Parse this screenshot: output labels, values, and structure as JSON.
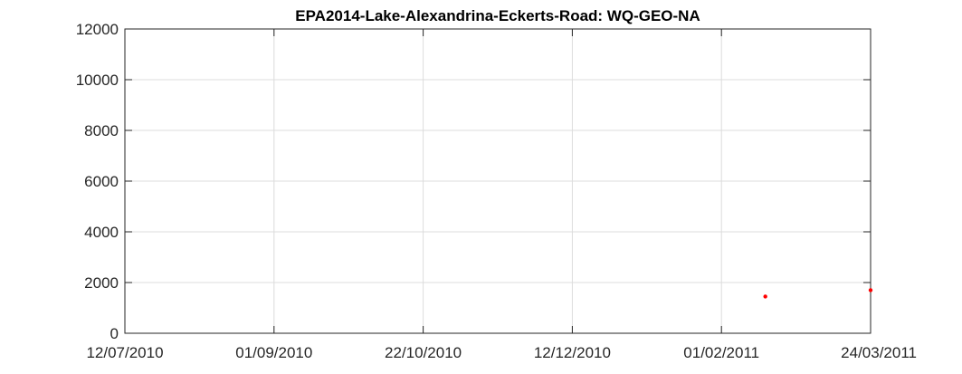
{
  "chart_data": {
    "type": "scatter",
    "title": "EPA2014-Lake-Alexandrina-Eckerts-Road: WQ-GEO-NA",
    "xlabel": "",
    "ylabel": "",
    "x_axis": {
      "type": "date",
      "range": [
        "2010-07-12",
        "2011-03-24"
      ],
      "ticks": [
        "2010-07-12",
        "2010-09-01",
        "2010-10-22",
        "2010-12-12",
        "2011-02-01",
        "2011-03-24"
      ],
      "tick_labels": [
        "12/07/2010",
        "01/09/2010",
        "22/10/2010",
        "12/12/2010",
        "01/02/2011",
        "24/03/2011"
      ]
    },
    "y_axis": {
      "range": [
        0,
        12000
      ],
      "ticks": [
        0,
        2000,
        4000,
        6000,
        8000,
        10000,
        12000
      ],
      "tick_labels": [
        "0",
        "2000",
        "4000",
        "6000",
        "8000",
        "10000",
        "12000"
      ]
    },
    "grid": true,
    "legend": "none",
    "series": [
      {
        "color": "#ff0000",
        "points": [
          {
            "x": "2011-02-16",
            "y": 1450
          },
          {
            "x": "2011-03-24",
            "y": 1700
          }
        ]
      }
    ]
  }
}
